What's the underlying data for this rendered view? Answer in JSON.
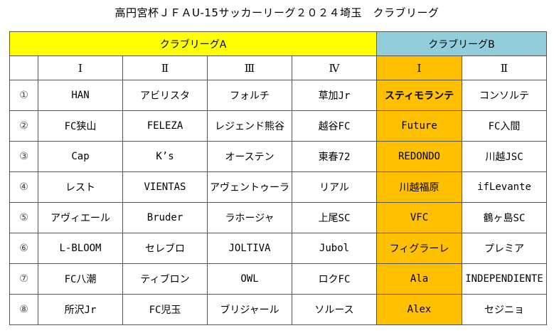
{
  "title": "高円宮杯ＪＦＡU-15サッカーリーグ２０２４埼玉　クラブリーグ",
  "groups": {
    "a": "クラブリーグA",
    "b": "クラブリーグB"
  },
  "columns": [
    "Ⅰ",
    "Ⅱ",
    "Ⅲ",
    "Ⅳ",
    "Ⅰ",
    "Ⅱ"
  ],
  "rows": [
    {
      "num": "①",
      "teams": [
        "HAN",
        "アビリスタ",
        "フォルチ",
        "草加Jr",
        "スティモランテ",
        "コンソルテ"
      ]
    },
    {
      "num": "②",
      "teams": [
        "FC狭山",
        "FELEZA",
        "レジェンド熊谷",
        "越谷FC",
        "Future",
        "FC入間"
      ]
    },
    {
      "num": "③",
      "teams": [
        "Cap",
        "K’s",
        "オーステン",
        "東春72",
        "REDONDO",
        "川越JSC"
      ]
    },
    {
      "num": "④",
      "teams": [
        "レスト",
        "VIENTAS",
        "アヴェントゥーラ",
        "リアル",
        "川越福原",
        "ifLevante"
      ]
    },
    {
      "num": "⑤",
      "teams": [
        "アヴィエール",
        "Bruder",
        "ラホージャ",
        "上尾SC",
        "VFC",
        "鶴ヶ島SC"
      ]
    },
    {
      "num": "⑥",
      "teams": [
        "L-BLOOM",
        "セレブロ",
        "JOLTIVA",
        "Jubol",
        "フィグラーレ",
        "プレミア"
      ]
    },
    {
      "num": "⑦",
      "teams": [
        "FC八潮",
        "ティブロン",
        "OWL",
        "ロクFC",
        "Ala",
        "INDEPENDIENTE"
      ]
    },
    {
      "num": "⑧",
      "teams": [
        "所沢Jr",
        "FC児玉",
        "ブリジャール",
        "ソルース",
        "Alex",
        "セジニョ"
      ]
    }
  ],
  "colors": {
    "group_a": "#ffff00",
    "group_b": "#92cddc",
    "highlight_column": "#ffc000"
  }
}
